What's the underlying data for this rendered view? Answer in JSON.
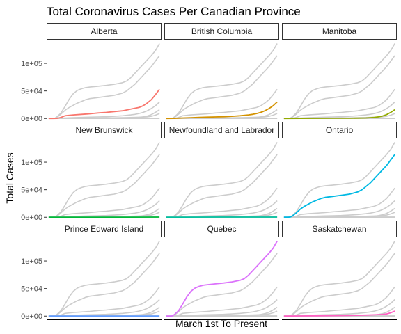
{
  "chart_data": {
    "type": "line",
    "title": "Total Coronavirus Cases Per Canadian Province",
    "xlabel": "March 1st To Present",
    "ylabel": "Total Cases",
    "ylim": [
      -6000,
      143000
    ],
    "xlim": [
      -5,
      275
    ],
    "yticks": [
      0,
      50000,
      100000
    ],
    "ytick_labels": [
      "0e+00",
      "5e+04",
      "1e+05"
    ],
    "grid": false,
    "layout": "facet-wrap 3x3",
    "background_color": "#cccccc",
    "series": [
      {
        "name": "Alberta",
        "color": "#F8766D",
        "x": [
          0,
          10,
          20,
          30,
          40,
          60,
          80,
          100,
          120,
          140,
          160,
          180,
          200,
          220,
          230,
          240,
          250,
          260,
          270
        ],
        "values": [
          0,
          0,
          200,
          2000,
          5000,
          6500,
          7500,
          8500,
          10000,
          11000,
          12500,
          14000,
          17000,
          20000,
          23000,
          28000,
          34000,
          43000,
          53000
        ]
      },
      {
        "name": "British Columbia",
        "color": "#D39200",
        "x": [
          0,
          20,
          40,
          60,
          80,
          100,
          120,
          140,
          160,
          180,
          200,
          210,
          220,
          230,
          240,
          250,
          260,
          270
        ],
        "values": [
          0,
          200,
          1000,
          1500,
          2000,
          2500,
          2800,
          3200,
          4000,
          5000,
          6500,
          7500,
          9000,
          11000,
          14000,
          18000,
          23000,
          30000
        ]
      },
      {
        "name": "Manitoba",
        "color": "#93AA00",
        "x": [
          0,
          40,
          80,
          120,
          160,
          200,
          210,
          220,
          230,
          240,
          250,
          260,
          270
        ],
        "values": [
          0,
          200,
          300,
          400,
          500,
          1000,
          1500,
          2000,
          3000,
          4500,
          7000,
          11000,
          16000
        ]
      },
      {
        "name": "New Brunswick",
        "color": "#00BA38",
        "x": [
          0,
          40,
          120,
          200,
          270
        ],
        "values": [
          0,
          100,
          170,
          250,
          350
        ]
      },
      {
        "name": "Newfoundland and Labrador",
        "color": "#00C19F",
        "x": [
          0,
          40,
          120,
          200,
          270
        ],
        "values": [
          0,
          200,
          260,
          290,
          310
        ]
      },
      {
        "name": "Ontario",
        "color": "#00B9E3",
        "x": [
          0,
          10,
          15,
          20,
          30,
          40,
          50,
          60,
          70,
          80,
          90,
          100,
          120,
          140,
          160,
          170,
          180,
          190,
          200,
          210,
          220,
          230,
          240,
          250,
          260,
          270
        ],
        "values": [
          0,
          0,
          500,
          2000,
          8000,
          15000,
          20000,
          24000,
          28000,
          31000,
          34000,
          36000,
          38000,
          40000,
          42000,
          44000,
          46000,
          50000,
          56000,
          62000,
          70000,
          78000,
          86000,
          94000,
          104000,
          114000
        ]
      },
      {
        "name": "Prince Edward Island",
        "color": "#619CFF",
        "x": [
          0,
          40,
          270
        ],
        "values": [
          0,
          30,
          70
        ]
      },
      {
        "name": "Quebec",
        "color": "#DB72FB",
        "x": [
          0,
          10,
          15,
          20,
          30,
          40,
          50,
          60,
          70,
          80,
          90,
          100,
          120,
          140,
          160,
          180,
          190,
          200,
          210,
          220,
          230,
          240,
          250,
          260,
          270
        ],
        "values": [
          0,
          0,
          500,
          3000,
          10000,
          22000,
          35000,
          45000,
          51000,
          54000,
          56000,
          57000,
          58500,
          60000,
          62000,
          65000,
          68000,
          74000,
          82000,
          90000,
          98000,
          106000,
          114000,
          123000,
          136000
        ]
      },
      {
        "name": "Saskatchewan",
        "color": "#FF61C3",
        "x": [
          0,
          40,
          80,
          120,
          160,
          200,
          220,
          240,
          250,
          260,
          270
        ],
        "values": [
          0,
          300,
          600,
          800,
          1200,
          1800,
          2300,
          3000,
          4000,
          6000,
          9000
        ]
      }
    ]
  }
}
